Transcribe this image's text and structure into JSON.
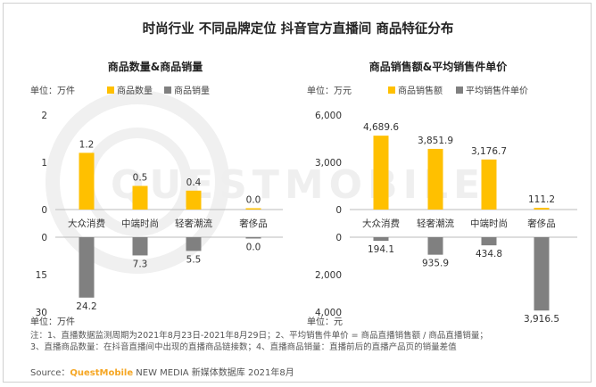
{
  "title": "时尚行业 不同品牌定位 抖音官方直播间 商品特征分布",
  "colors": {
    "bar1": "#FFC000",
    "bar2": "#808080",
    "brand": "#f5a623"
  },
  "chart_data": [
    {
      "type": "bar",
      "title": "商品数量&商品销量",
      "unit_top": "单位：万件",
      "unit_bottom": "单位：万件",
      "categories": [
        "大众消费",
        "中端时尚",
        "轻奢潮流",
        "奢侈品"
      ],
      "series": [
        {
          "name": "商品数量",
          "values": [
            1.2,
            0.5,
            0.4,
            0.0
          ],
          "labels": [
            "1.2",
            "0.5",
            "0.4",
            "0.0"
          ],
          "ylim": [
            0,
            2
          ],
          "yticks": [
            "0",
            "1",
            "2"
          ]
        },
        {
          "name": "商品销量",
          "values": [
            24.2,
            7.3,
            5.5,
            0.0
          ],
          "labels": [
            "24.2",
            "7.3",
            "5.5",
            "0.0"
          ],
          "ylim": [
            0,
            30
          ],
          "yticks": [
            "0",
            "15",
            "30"
          ]
        }
      ]
    },
    {
      "type": "bar",
      "title": "商品销售额&平均销售件单价",
      "unit_top": "单位：万元",
      "unit_bottom": "单位：元",
      "categories": [
        "大众消费",
        "轻奢潮流",
        "中端时尚",
        "奢侈品"
      ],
      "series": [
        {
          "name": "商品销售额",
          "values": [
            4689.6,
            3851.9,
            3176.7,
            111.2
          ],
          "labels": [
            "4,689.6",
            "3,851.9",
            "3,176.7",
            "111.2"
          ],
          "ylim": [
            0,
            6000
          ],
          "yticks": [
            "0",
            "3,000",
            "6,000"
          ]
        },
        {
          "name": "平均销售件单价",
          "values": [
            194.1,
            935.9,
            434.8,
            3916.5
          ],
          "labels": [
            "194.1",
            "935.9",
            "434.8",
            "3,916.5"
          ],
          "ylim": [
            0,
            4000
          ],
          "yticks": [
            "0",
            "2,000",
            "4,000"
          ]
        }
      ]
    }
  ],
  "notes": [
    "注：1、直播数据监测周期为2021年8月23日-2021年8月29日；2、平均销售件单价 = 商品直播销售额 / 商品直播销量；",
    "3、直播商品数量：在抖音直播间中出现的直播商品链接数；4、直播商品销量：直播前后的直播产品页的销量差值"
  ],
  "source": {
    "label": "Source：",
    "brand": "QuestMobile",
    "rest": " NEW MEDIA 新媒体数据库 2021年8月"
  },
  "watermark": "QUESTMOBILE"
}
